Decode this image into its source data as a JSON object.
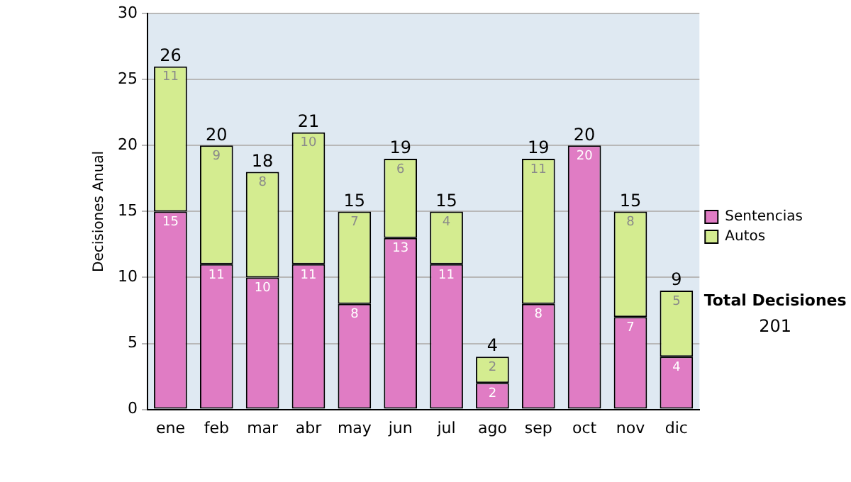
{
  "chart_data": {
    "type": "bar",
    "stacked": true,
    "ylabel": "Decisiones Anual",
    "categories": [
      "ene",
      "feb",
      "mar",
      "abr",
      "may",
      "jun",
      "jul",
      "ago",
      "sep",
      "oct",
      "nov",
      "dic"
    ],
    "series": [
      {
        "name": "Sentencias",
        "color": "#e07cc4",
        "values": [
          15,
          11,
          10,
          11,
          8,
          13,
          11,
          2,
          8,
          20,
          7,
          4
        ],
        "value_labels": [
          "15",
          "11",
          "10",
          "11",
          "8",
          "13",
          "11",
          "2",
          "8",
          "20",
          "7",
          "4"
        ]
      },
      {
        "name": "Autos",
        "color": "#d4ec90",
        "values": [
          11,
          9,
          8,
          10,
          7,
          6,
          4,
          2,
          11,
          0,
          8,
          5
        ],
        "value_labels": [
          "11",
          "9",
          "8",
          "10",
          "7",
          "6",
          "4",
          "2",
          "11",
          null,
          "8",
          "5"
        ]
      }
    ],
    "totals": [
      "26",
      "20",
      "18",
      "21",
      "15",
      "19",
      "15",
      "4",
      "19",
      "20",
      "15",
      "9"
    ],
    "ylim": [
      0,
      30
    ],
    "yticks": [
      0,
      5,
      10,
      15,
      20,
      25,
      30
    ],
    "grid": "y",
    "legend": "right",
    "annotations": [
      "Total Decisiones",
      "201"
    ]
  }
}
